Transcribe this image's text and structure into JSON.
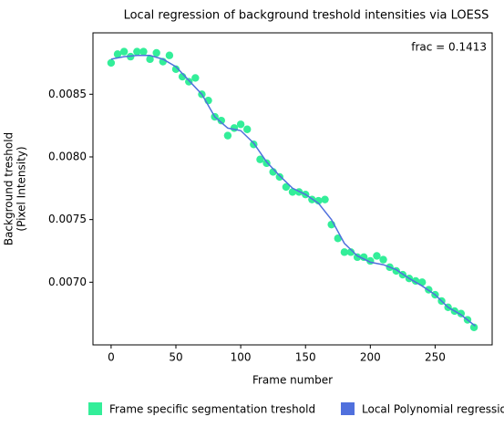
{
  "chart_data": {
    "type": "line",
    "title": "Local regression of background treshold intensities via LOESS",
    "xlabel": "Frame number",
    "ylabel": [
      "Background treshold",
      "(Pixel Intensity)"
    ],
    "annotation": "frac = 0.1413",
    "xlim": [
      -14,
      294
    ],
    "ylim": [
      0.0065,
      0.00899
    ],
    "xticks": [
      0,
      50,
      100,
      150,
      200,
      250
    ],
    "yticks": [
      {
        "value": 0.007,
        "label": "0.0070"
      },
      0.0075,
      {
        "value": 0.008,
        "label": "0.0080"
      },
      0.0085
    ],
    "legend": "bottom",
    "series": [
      {
        "name": "Frame specific segmentation treshold",
        "color": "#33ee99",
        "style": "markers",
        "x": [
          0,
          5,
          10,
          15,
          20,
          25,
          30,
          35,
          40,
          45,
          50,
          55,
          60,
          65,
          70,
          75,
          80,
          85,
          90,
          95,
          100,
          105,
          110,
          115,
          120,
          125,
          130,
          135,
          140,
          145,
          150,
          155,
          160,
          165,
          170,
          175,
          180,
          185,
          190,
          195,
          200,
          205,
          210,
          215,
          220,
          225,
          230,
          235,
          240,
          245,
          250,
          255,
          260,
          265,
          270,
          275,
          280
        ],
        "values": [
          0.00875,
          0.00882,
          0.00884,
          0.0088,
          0.00884,
          0.00884,
          0.00878,
          0.00883,
          0.00876,
          0.00881,
          0.0087,
          0.00864,
          0.0086,
          0.00863,
          0.0085,
          0.00845,
          0.00832,
          0.00829,
          0.00817,
          0.00823,
          0.00826,
          0.00822,
          0.0081,
          0.00798,
          0.00795,
          0.00788,
          0.00784,
          0.00776,
          0.00772,
          0.00772,
          0.0077,
          0.00766,
          0.00765,
          0.00766,
          0.00746,
          0.00735,
          0.00724,
          0.00724,
          0.0072,
          0.0072,
          0.00717,
          0.00721,
          0.00718,
          0.00712,
          0.00709,
          0.00706,
          0.00703,
          0.00701,
          0.007,
          0.00694,
          0.0069,
          0.00685,
          0.0068,
          0.00677,
          0.00675,
          0.0067,
          0.00664
        ]
      },
      {
        "name": "Local Polynomial regression",
        "color": "#5070dd",
        "style": "line",
        "x": [
          0,
          10,
          20,
          30,
          40,
          50,
          60,
          70,
          80,
          90,
          100,
          110,
          120,
          130,
          140,
          150,
          160,
          170,
          180,
          190,
          200,
          210,
          220,
          230,
          240,
          250,
          260,
          270,
          281
        ],
        "values": [
          0.00878,
          0.0088,
          0.00881,
          0.00881,
          0.00878,
          0.00872,
          0.00861,
          0.0085,
          0.00832,
          0.00823,
          0.00821,
          0.00811,
          0.00796,
          0.00785,
          0.00775,
          0.0077,
          0.00763,
          0.0075,
          0.00731,
          0.00721,
          0.00716,
          0.00714,
          0.0071,
          0.00703,
          0.00697,
          0.0069,
          0.0068,
          0.00674,
          0.00665
        ]
      }
    ]
  }
}
